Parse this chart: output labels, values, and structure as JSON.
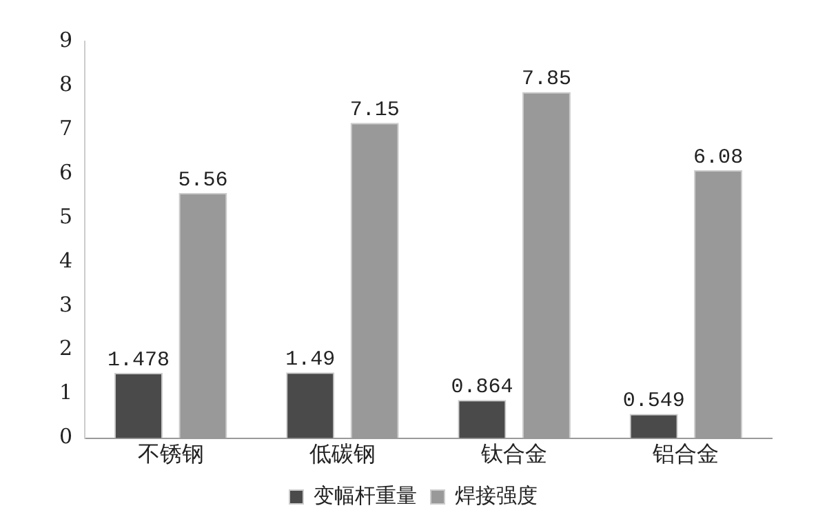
{
  "chart_data": {
    "type": "bar",
    "categories": [
      "不锈钢",
      "低碳钢",
      "钛合金",
      "铝合金"
    ],
    "series": [
      {
        "name": "变幅杆重量",
        "color": "#4a4a4a",
        "values": [
          1.478,
          1.49,
          0.864,
          0.549
        ]
      },
      {
        "name": "焊接强度",
        "color": "#999999",
        "values": [
          5.56,
          7.15,
          7.85,
          6.08
        ]
      }
    ],
    "ylim": [
      0,
      9
    ],
    "yticks": [
      0,
      1,
      2,
      3,
      4,
      5,
      6,
      7,
      8,
      9
    ],
    "grid": false,
    "legend": "bottom",
    "data_labels": true
  }
}
